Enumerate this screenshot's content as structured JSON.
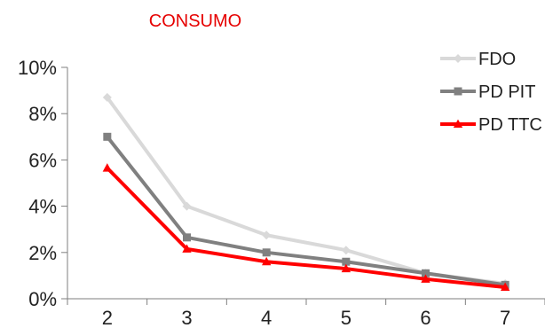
{
  "chart_data": {
    "type": "line",
    "title": "CONSUMO",
    "title_color": "#e60000",
    "xlabel": "",
    "ylabel": "",
    "categories": [
      "2",
      "3",
      "4",
      "5",
      "6",
      "7"
    ],
    "ylim": [
      0,
      10
    ],
    "yticks": [
      "0%",
      "2%",
      "4%",
      "6%",
      "8%",
      "10%"
    ],
    "grid": false,
    "legend_position": "top-right",
    "series": [
      {
        "name": "FDO",
        "values": [
          8.7,
          4.0,
          2.75,
          2.1,
          1.1,
          0.65
        ],
        "color": "#d9d9d9",
        "marker": "diamond"
      },
      {
        "name": "PD PIT",
        "values": [
          7.0,
          2.65,
          2.0,
          1.6,
          1.1,
          0.6
        ],
        "color": "#808080",
        "marker": "square"
      },
      {
        "name": "PD TTC",
        "values": [
          5.65,
          2.15,
          1.6,
          1.3,
          0.85,
          0.5
        ],
        "color": "#ff0000",
        "marker": "triangle"
      }
    ]
  }
}
